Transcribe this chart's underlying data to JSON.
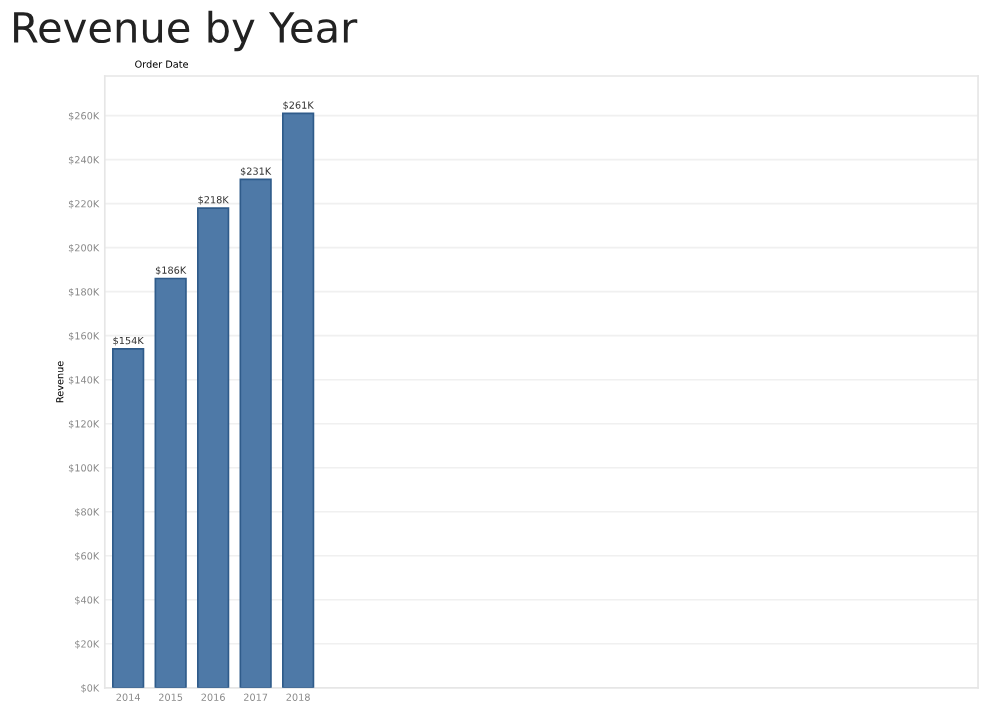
{
  "chart_data": {
    "type": "bar",
    "title": "Revenue by Year",
    "subtitle": "Order Date",
    "ylabel": "Revenue",
    "categories": [
      "2014",
      "2015",
      "2016",
      "2017",
      "2018"
    ],
    "values": [
      154,
      186,
      218,
      231,
      261
    ],
    "value_labels": [
      "$154K",
      "$186K",
      "$218K",
      "$231K",
      "$261K"
    ],
    "color": "#4e79a7",
    "ylim": [
      0,
      278
    ],
    "yticks": [
      {
        "value": 0,
        "label": "$0K"
      },
      {
        "value": 20,
        "label": "$20K"
      },
      {
        "value": 40,
        "label": "$40K"
      },
      {
        "value": 60,
        "label": "$60K"
      },
      {
        "value": 80,
        "label": "$80K"
      },
      {
        "value": 100,
        "label": "$100K"
      },
      {
        "value": 120,
        "label": "$120K"
      },
      {
        "value": 140,
        "label": "$140K"
      },
      {
        "value": 160,
        "label": "$160K"
      },
      {
        "value": 180,
        "label": "$180K"
      },
      {
        "value": 200,
        "label": "$200K"
      },
      {
        "value": 220,
        "label": "$220K"
      },
      {
        "value": 240,
        "label": "$240K"
      },
      {
        "value": 260,
        "label": "$260K"
      }
    ],
    "grid": "y"
  }
}
